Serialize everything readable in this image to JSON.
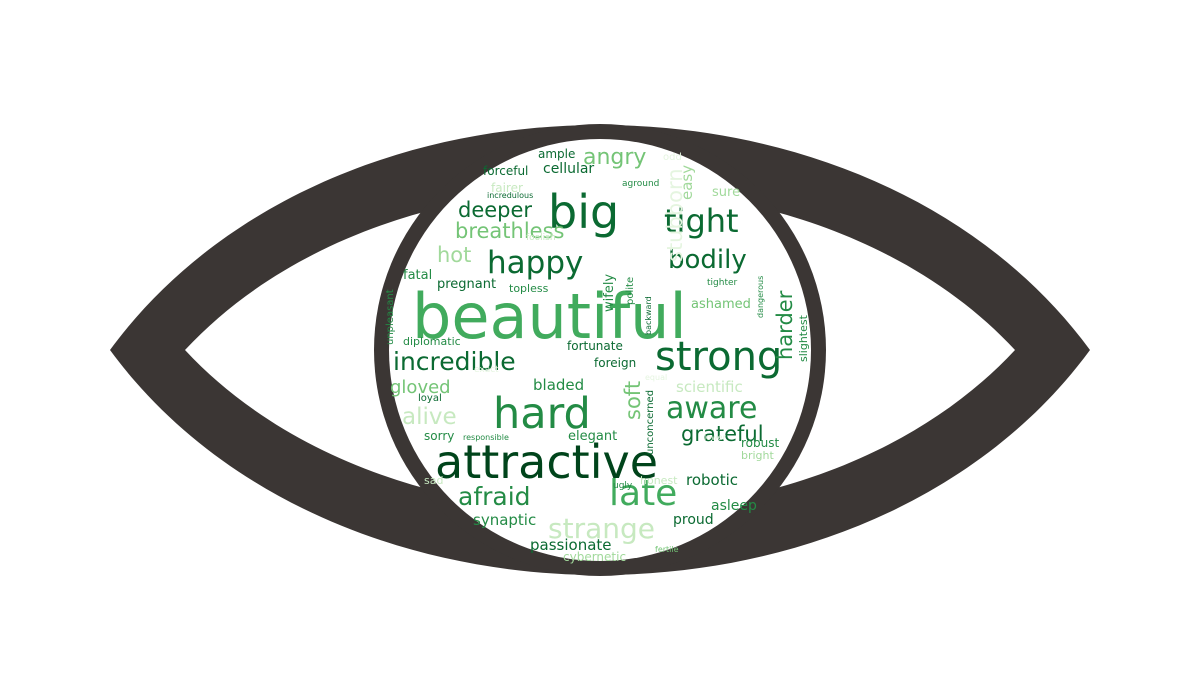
{
  "colors": {
    "background": "#ffffff",
    "eye_outline": "#3b3634",
    "iris_fill": "#ffffff"
  },
  "palette": {
    "darkest": "#00441b",
    "dark": "#0b6a32",
    "mid": "#238b45",
    "medium": "#41ab5d",
    "light": "#74c476",
    "pale": "#a1d99b",
    "faint": "#c7e9c0",
    "ghost": "#e5f5e0"
  },
  "words": [
    "beautiful",
    "attractive",
    "strong",
    "hard",
    "big",
    "tight",
    "incredible",
    "happy",
    "aware",
    "late",
    "bodily",
    "afraid",
    "strange",
    "angry",
    "deeper",
    "grateful",
    "breathless",
    "alive",
    "hot",
    "gloved",
    "soft",
    "harder",
    "stubborn",
    "robotic",
    "passionate",
    "synaptic",
    "bladed",
    "elegant",
    "proud",
    "asleep",
    "cellular",
    "ample",
    "scientific",
    "sorry",
    "fairer",
    "forceful",
    "foreign",
    "fortunate",
    "easy",
    "sure",
    "polite",
    "wifely",
    "ashamed",
    "pregnant",
    "topless",
    "fatal",
    "diplomatic",
    "loyal",
    "responsible",
    "unconcerned",
    "honest",
    "ugly",
    "sad",
    "cybernetic",
    "fertile",
    "robust",
    "bright",
    "slightest",
    "dangerous",
    "tighter",
    "backward",
    "unpleasant",
    "aground",
    "incredulous",
    "foolish",
    "odd",
    "equal",
    "lower",
    "exact"
  ]
}
